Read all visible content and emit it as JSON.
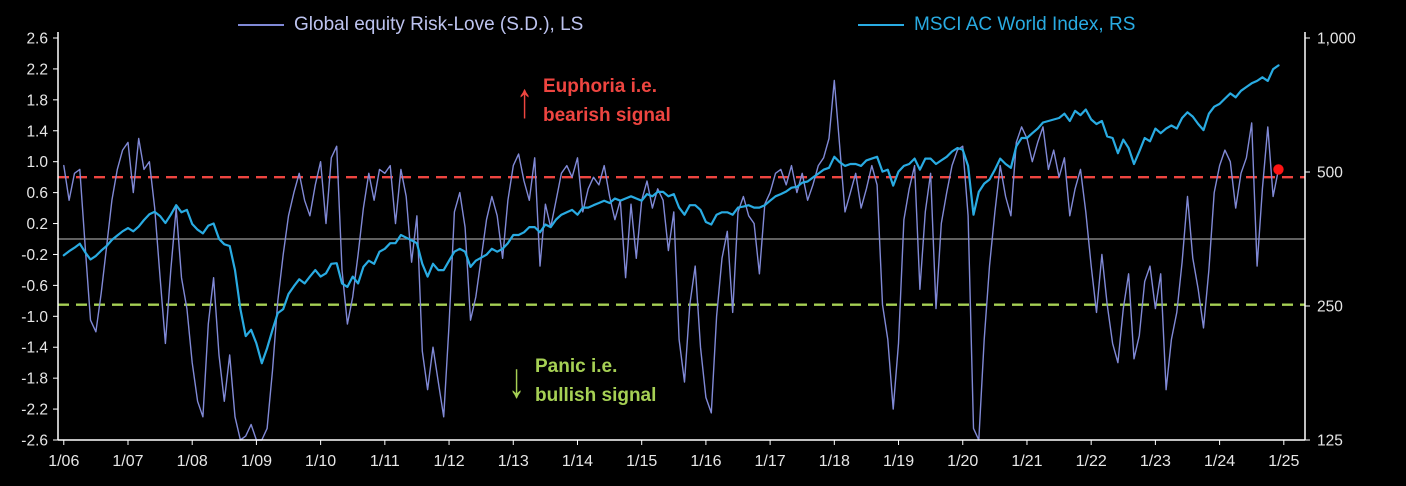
{
  "page": {
    "background": "#000000"
  },
  "legend": {
    "risk_love": {
      "label": "Global equity Risk-Love (S.D.), LS",
      "line_color": "#8089d6",
      "text_color": "#bdc3ef"
    },
    "msci": {
      "label": "MSCI AC World Index, RS",
      "line_color": "#29abe2",
      "text_color": "#29abe2"
    }
  },
  "annotations": {
    "euphoria": {
      "arrow": "↑",
      "line1": "Euphoria  i.e.",
      "line2": "bearish signal",
      "color": "#ee4540"
    },
    "panic": {
      "arrow": "↓",
      "line1": "Panic i.e.",
      "line2": "bullish signal",
      "color": "#a6d054"
    }
  },
  "chart_data": {
    "type": "line",
    "background": "#000000",
    "axis_text_color": "#e6e6e6",
    "spine_color": "#ffffff",
    "x_range": [
      2005.91,
      2025.33
    ],
    "x_tick_start_year": 2006,
    "x_ticks": [
      "1/06",
      "1/07",
      "1/08",
      "1/09",
      "1/10",
      "1/11",
      "1/12",
      "1/13",
      "1/14",
      "1/15",
      "1/16",
      "1/17",
      "1/18",
      "1/19",
      "1/20",
      "1/21",
      "1/22",
      "1/23",
      "1/24",
      "1/25"
    ],
    "left_axis": {
      "min": -2.6,
      "max": 2.6,
      "ticks": [
        2.6,
        2.2,
        1.8,
        1.4,
        1.0,
        0.6,
        0.2,
        -0.2,
        -0.6,
        -1.0,
        -1.4,
        -1.8,
        -2.2,
        -2.6
      ],
      "labels": [
        "2.6",
        "2.2",
        "1.8",
        "1.4",
        "1.0",
        "0.6",
        "0.2",
        "-0.2",
        "-0.6",
        "-1.0",
        "-1.4",
        "-1.8",
        "-2.2",
        "-2.6"
      ]
    },
    "right_axis": {
      "scale": "log",
      "min": 125,
      "max": 1000,
      "ticks": [
        1000,
        500,
        250,
        125
      ],
      "labels": [
        "1,000",
        "500",
        "250",
        "125"
      ]
    },
    "zero_line": {
      "value": 0,
      "color": "#9b9b9b"
    },
    "thresholds": {
      "euphoria": {
        "value": 0.8,
        "color": "#ee4540"
      },
      "panic": {
        "value": -0.85,
        "color": "#a6d054"
      }
    },
    "last_point_marker": {
      "color": "#ff1414"
    },
    "series": [
      {
        "name": "risk-love",
        "axis": "left",
        "color": "#8089d6",
        "width": 1.4,
        "x_start": 2006.0,
        "x_step": 0.0833333,
        "values": [
          0.95,
          0.5,
          0.85,
          0.9,
          -0.1,
          -1.05,
          -1.2,
          -0.7,
          -0.1,
          0.5,
          0.9,
          1.15,
          1.25,
          0.6,
          1.3,
          0.9,
          1.0,
          0.4,
          -0.5,
          -1.35,
          -0.4,
          0.4,
          -0.5,
          -0.9,
          -1.6,
          -2.1,
          -2.3,
          -1.1,
          -0.5,
          -1.5,
          -2.1,
          -1.5,
          -2.3,
          -2.6,
          -2.55,
          -2.4,
          -2.6,
          -2.6,
          -2.45,
          -1.7,
          -0.8,
          -0.2,
          0.3,
          0.6,
          0.85,
          0.5,
          0.3,
          0.7,
          1.0,
          0.2,
          1.05,
          1.2,
          -0.4,
          -1.1,
          -0.75,
          -0.2,
          0.4,
          0.85,
          0.5,
          0.9,
          0.85,
          0.95,
          0.2,
          0.9,
          0.55,
          -0.3,
          0.3,
          -1.45,
          -1.95,
          -1.4,
          -1.85,
          -2.3,
          -1.1,
          0.35,
          0.6,
          0.15,
          -1.05,
          -0.75,
          -0.25,
          0.25,
          0.55,
          0.3,
          -0.25,
          0.5,
          0.95,
          1.1,
          0.75,
          0.5,
          1.05,
          -0.35,
          0.45,
          0.15,
          0.5,
          0.85,
          0.95,
          0.8,
          1.05,
          0.35,
          0.65,
          0.8,
          0.7,
          0.95,
          0.55,
          0.25,
          0.5,
          -0.5,
          0.45,
          -0.25,
          0.5,
          0.75,
          0.4,
          0.65,
          0.5,
          -0.15,
          0.35,
          -1.3,
          -1.85,
          -0.85,
          -0.35,
          -1.4,
          -2.05,
          -2.25,
          -1.0,
          -0.25,
          0.1,
          -0.95,
          0.35,
          0.55,
          0.3,
          0.2,
          -0.45,
          0.45,
          0.6,
          0.85,
          0.9,
          0.7,
          0.95,
          0.6,
          0.85,
          0.5,
          0.7,
          0.95,
          1.05,
          1.3,
          2.05,
          1.2,
          0.35,
          0.6,
          0.85,
          0.4,
          0.65,
          0.95,
          0.7,
          -0.85,
          -1.3,
          -2.2,
          -1.35,
          0.25,
          0.65,
          0.95,
          -0.65,
          0.35,
          0.85,
          -0.9,
          0.2,
          0.6,
          0.95,
          1.15,
          1.2,
          0.3,
          -2.45,
          -2.6,
          -1.3,
          -0.35,
          0.35,
          0.95,
          0.55,
          0.3,
          1.25,
          1.45,
          1.3,
          1.0,
          1.25,
          1.45,
          0.9,
          1.15,
          0.8,
          1.05,
          0.3,
          0.65,
          0.9,
          0.35,
          -0.35,
          -0.95,
          -0.2,
          -0.85,
          -1.35,
          -1.6,
          -0.9,
          -0.45,
          -1.55,
          -1.25,
          -0.55,
          -0.35,
          -0.9,
          -0.45,
          -1.95,
          -1.3,
          -0.95,
          -0.3,
          0.55,
          -0.25,
          -0.65,
          -1.15,
          -0.4,
          0.6,
          0.95,
          1.15,
          1.0,
          0.4,
          0.85,
          1.05,
          1.5,
          -0.35,
          0.65,
          1.45,
          0.55,
          0.9
        ]
      },
      {
        "name": "msci-ac-world",
        "axis": "right",
        "color": "#29abe2",
        "width": 2.2,
        "x_start": 2006.0,
        "x_step": 0.0833333,
        "values": [
          325,
          332,
          338,
          345,
          330,
          318,
          324,
          333,
          341,
          352,
          360,
          368,
          374,
          368,
          377,
          390,
          402,
          407,
          398,
          384,
          401,
          421,
          406,
          411,
          382,
          371,
          364,
          379,
          383,
          354,
          344,
          341,
          301,
          246,
          214,
          221,
          206,
          186,
          201,
          221,
          241,
          246,
          266,
          277,
          287,
          281,
          291,
          301,
          291,
          296,
          311,
          312,
          281,
          276,
          291,
          281,
          306,
          316,
          311,
          331,
          336,
          346,
          346,
          361,
          356,
          351,
          346,
          311,
          291,
          311,
          301,
          301,
          316,
          331,
          336,
          331,
          306,
          316,
          321,
          326,
          336,
          331,
          336,
          346,
          361,
          361,
          366,
          376,
          376,
          366,
          381,
          376,
          391,
          401,
          406,
          411,
          401,
          416,
          416,
          421,
          426,
          431,
          426,
          436,
          431,
          436,
          441,
          436,
          431,
          446,
          441,
          451,
          451,
          441,
          446,
          416,
          401,
          421,
          421,
          411,
          386,
          381,
          401,
          406,
          406,
          401,
          416,
          418,
          421,
          416,
          416,
          421,
          431,
          441,
          446,
          452,
          461,
          463,
          473,
          476,
          486,
          496,
          506,
          511,
          541,
          526,
          516,
          521,
          521,
          516,
          531,
          536,
          541,
          501,
          506,
          466,
          501,
          516,
          521,
          536,
          506,
          536,
          536,
          521,
          531,
          541,
          556,
          566,
          561,
          516,
          401,
          451,
          471,
          481,
          506,
          536,
          521,
          511,
          571,
          596,
          596,
          611,
          626,
          646,
          651,
          656,
          661,
          676,
          651,
          686,
          671,
          691,
          656,
          641,
          651,
          601,
          596,
          551,
          591,
          566,
          521,
          556,
          596,
          586,
          626,
          611,
          626,
          636,
          626,
          661,
          681,
          666,
          641,
          621,
          676,
          701,
          711,
          731,
          751,
          736,
          761,
          776,
          791,
          801,
          816,
          801,
          851,
          868
        ]
      }
    ]
  }
}
